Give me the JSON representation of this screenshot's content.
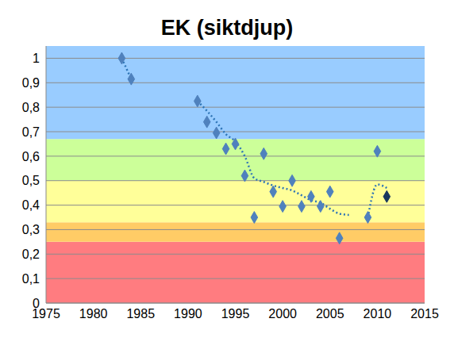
{
  "chart_data": {
    "type": "scatter",
    "title": "EK (siktdjup)",
    "xlim": [
      1975,
      2015
    ],
    "xticks": [
      1975,
      1980,
      1985,
      1990,
      1995,
      2000,
      2005,
      2010,
      2015
    ],
    "ylim": [
      0,
      1.05
    ],
    "yticks": [
      0,
      {
        "value": 0.1,
        "label": "0,1"
      },
      {
        "value": 0.2,
        "label": "0,2"
      },
      {
        "value": 0.3,
        "label": "0,3"
      },
      {
        "value": 0.4,
        "label": "0,4"
      },
      {
        "value": 0.5,
        "label": "0,5"
      },
      {
        "value": 0.6,
        "label": "0,6"
      },
      {
        "value": 0.7,
        "label": "0,7"
      },
      {
        "value": 0.8,
        "label": "0,8"
      },
      {
        "value": 0.9,
        "label": "0,9"
      },
      1
    ],
    "grid": true,
    "bands": [
      {
        "from": 0,
        "to": 0.25,
        "color": "#ff7c80"
      },
      {
        "from": 0.25,
        "to": 0.33,
        "color": "#ffcc66"
      },
      {
        "from": 0.33,
        "to": 0.5,
        "color": "#ffff99"
      },
      {
        "from": 0.5,
        "to": 0.67,
        "color": "#ccff99"
      },
      {
        "from": 0.67,
        "to": 1.05,
        "color": "#99ccff"
      }
    ],
    "series": [
      {
        "type": "line",
        "line_style": "dotted",
        "color": "#2e75b6",
        "x": [
          1983,
          1984,
          1985,
          1991,
          1992,
          1993,
          1994,
          1995,
          1996,
          1997,
          1998,
          1999,
          2000,
          2001,
          2002,
          2003,
          2004,
          2005,
          2006,
          2007,
          2008,
          2009,
          2010,
          2011
        ],
        "values": [
          1.0,
          0.915,
          null,
          0.825,
          0.785,
          0.74,
          0.69,
          0.66,
          0.6,
          0.51,
          0.495,
          0.48,
          0.47,
          0.46,
          0.44,
          0.42,
          0.41,
          0.385,
          0.365,
          0.36,
          null,
          0.35,
          0.485,
          0.47
        ]
      },
      {
        "type": "scatter",
        "marker": "diamond",
        "color": "#4f81bd",
        "x": [
          1983,
          1984,
          1991,
          1992,
          1993,
          1994,
          1995,
          1996,
          1997,
          1998,
          1999,
          2000,
          2001,
          2002,
          2003,
          2004,
          2005,
          2006,
          2009,
          2010
        ],
        "values": [
          1.0,
          0.915,
          0.825,
          0.74,
          0.695,
          0.63,
          0.65,
          0.52,
          0.35,
          0.61,
          0.455,
          0.395,
          0.5,
          0.395,
          0.435,
          0.395,
          0.455,
          0.265,
          0.35,
          0.62
        ]
      },
      {
        "type": "scatter",
        "marker": "diamond",
        "color": "#17375e",
        "x": [
          2011
        ],
        "values": [
          0.435
        ]
      }
    ]
  }
}
